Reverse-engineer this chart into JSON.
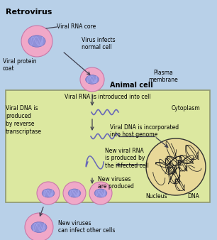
{
  "bg_outer": "#b8d0e8",
  "bg_inner": "#dce8a0",
  "colors": {
    "virus_outer": "#f0a8c8",
    "virus_inner": "#9090d8",
    "virus_outline": "#c878a8",
    "rna_color": "#6868b8",
    "nucleus_fill": "#e8d898",
    "nucleus_edge": "#303030",
    "arrow_color": "#404050",
    "green_edge": "#909870"
  },
  "labels": {
    "title": "Retrovirus",
    "viral_protein_coat": "Viral protein\ncoat",
    "viral_rna_core": "Viral RNA core",
    "virus_infects": "Virus infects\nnormal cell",
    "animal_cell": "Animal cell",
    "plasma_membrane": "Plasma\nmembrane",
    "viral_rna_intro": "Viral RNA is introduced into cell",
    "cytoplasm": "Cytoplasm",
    "viral_dna_produced": "Viral DNA is\nproduced\nby reverse\ntranscriptase",
    "viral_dna_incorporated": "Viral DNA is incorporated\ninto host genome",
    "new_viral_rna": "New viral RNA\nis produced by\nthe infected cell",
    "new_viruses_produced": "New viruses\nare produced",
    "nucleus": "Nucleus",
    "dna": "DNA",
    "new_viruses_infect": "New viruses\ncan infect other cells"
  }
}
